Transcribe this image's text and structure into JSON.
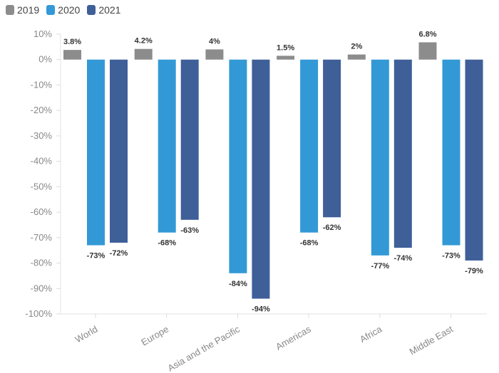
{
  "chart_data": {
    "type": "bar",
    "categories": [
      "World",
      "Europe",
      "Asia and the Pacific",
      "Americas",
      "Africa",
      "Middle East"
    ],
    "series": [
      {
        "name": "2019",
        "color": "#8c8c8c",
        "values": [
          3.8,
          4.2,
          4,
          1.5,
          2,
          6.8
        ],
        "labels": [
          "3.8%",
          "4.2%",
          "4%",
          "1.5%",
          "2%",
          "6.8%"
        ]
      },
      {
        "name": "2020",
        "color": "#3399d6",
        "values": [
          -73,
          -68,
          -84,
          -68,
          -77,
          -73
        ],
        "labels": [
          "-73%",
          "-68%",
          "-84%",
          "-68%",
          "-77%",
          "-73%"
        ]
      },
      {
        "name": "2021",
        "color": "#3f5f99",
        "values": [
          -72,
          -63,
          -94,
          -62,
          -74,
          -79
        ],
        "labels": [
          "-72%",
          "-63%",
          "-94%",
          "-62%",
          "-74%",
          "-79%"
        ]
      }
    ],
    "yticks": [
      10,
      0,
      -10,
      -20,
      -30,
      -40,
      -50,
      -60,
      -70,
      -80,
      -90,
      -100
    ],
    "ytick_labels": [
      "10%",
      "0%",
      "-10%",
      "-20%",
      "-30%",
      "-40%",
      "-50%",
      "-60%",
      "-70%",
      "-80%",
      "-90%",
      "-100%"
    ],
    "ylim": [
      -100,
      10
    ],
    "legend_position": "top-left",
    "grid": false
  }
}
